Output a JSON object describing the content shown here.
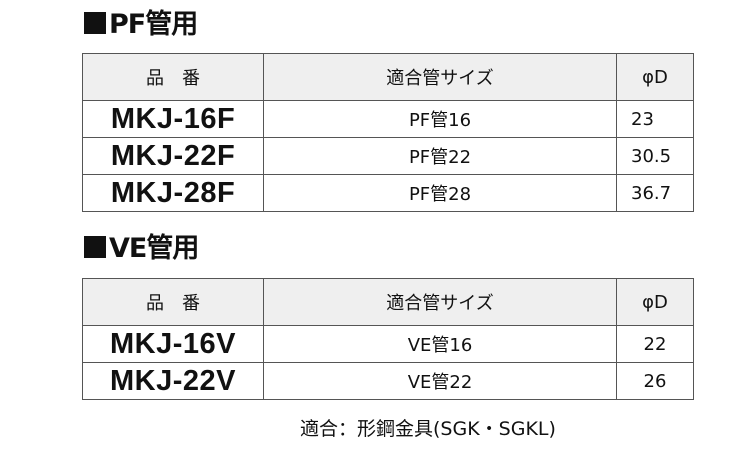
{
  "sections": [
    {
      "title": "PF管用",
      "headers": [
        "品　番",
        "適合管サイズ",
        "φD"
      ],
      "rows": [
        [
          "MKJ-16F",
          "PF管16",
          "23"
        ],
        [
          "MKJ-22F",
          "PF管22",
          "30.5"
        ],
        [
          "MKJ-28F",
          "PF管28",
          "36.7"
        ]
      ]
    },
    {
      "title": "VE管用",
      "headers": [
        "品　番",
        "適合管サイズ",
        "φD"
      ],
      "rows": [
        [
          "MKJ-16V",
          "VE管16",
          "22"
        ],
        [
          "MKJ-22V",
          "VE管22",
          "26"
        ]
      ]
    }
  ],
  "note": "適合：形鋼金具(SGK・SGKL)"
}
